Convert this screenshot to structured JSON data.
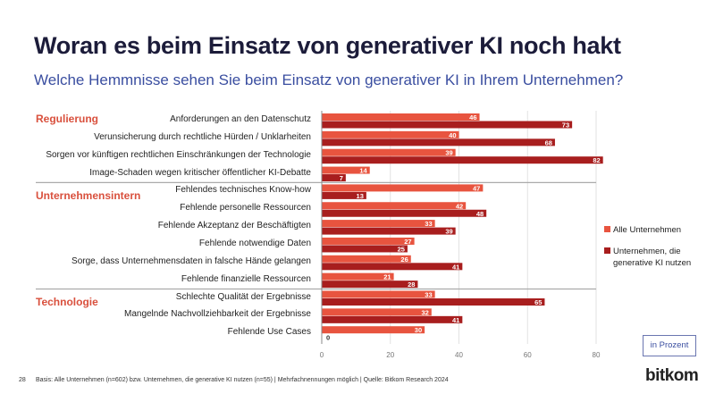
{
  "title": "Woran es beim Einsatz von generativer KI noch hakt",
  "subtitle": "Welche Hemmnisse sehen Sie beim Einsatz von generativer KI in Ihrem Unternehmen?",
  "groups": [
    "Regulierung",
    "Unternehmensintern",
    "Technologie"
  ],
  "unit_label": "in Prozent",
  "page_number": "28",
  "footer": "Basis: Alle Unternehmen (n=602) bzw. Unternehmen, die generative KI nutzen (n=55) | Mehrfachnennungen möglich | Quelle: Bitkom Research 2024",
  "logo": "bitkom",
  "chart_data": {
    "type": "bar",
    "orientation": "horizontal",
    "categories": [
      "Anforderungen an den Datenschutz",
      "Verunsicherung durch rechtliche Hürden / Unklarheiten",
      "Sorgen vor künftigen rechtlichen Einschränkungen der Technologie",
      "Image-Schaden wegen kritischer öffentlicher KI-Debatte",
      "Fehlendes technisches Know-how",
      "Fehlende personelle Ressourcen",
      "Fehlende Akzeptanz der Beschäftigten",
      "Fehlende notwendige Daten",
      "Sorge, dass Unternehmensdaten in falsche Hände gelangen",
      "Fehlende finanzielle Ressourcen",
      "Schlechte Qualität der Ergebnisse",
      "Mangelnde Nachvollziehbarkeit der Ergebnisse",
      "Fehlende Use Cases"
    ],
    "category_groups": [
      "Regulierung",
      "Regulierung",
      "Regulierung",
      "Regulierung",
      "Unternehmensintern",
      "Unternehmensintern",
      "Unternehmensintern",
      "Unternehmensintern",
      "Unternehmensintern",
      "Unternehmensintern",
      "Technologie",
      "Technologie",
      "Technologie"
    ],
    "series": [
      {
        "name": "Alle Unternehmen",
        "color": "#e8543f",
        "values": [
          46,
          40,
          39,
          14,
          47,
          42,
          33,
          27,
          26,
          21,
          33,
          32,
          30
        ]
      },
      {
        "name": "Unternehmen, die generative KI nutzen",
        "color": "#a81e1e",
        "values": [
          73,
          68,
          82,
          7,
          13,
          48,
          39,
          25,
          41,
          28,
          65,
          41,
          0
        ]
      }
    ],
    "xlim": [
      0,
      80
    ],
    "xticks": [
      "0",
      "20",
      "40",
      "60",
      "80"
    ],
    "grid": true,
    "legend": "right"
  }
}
